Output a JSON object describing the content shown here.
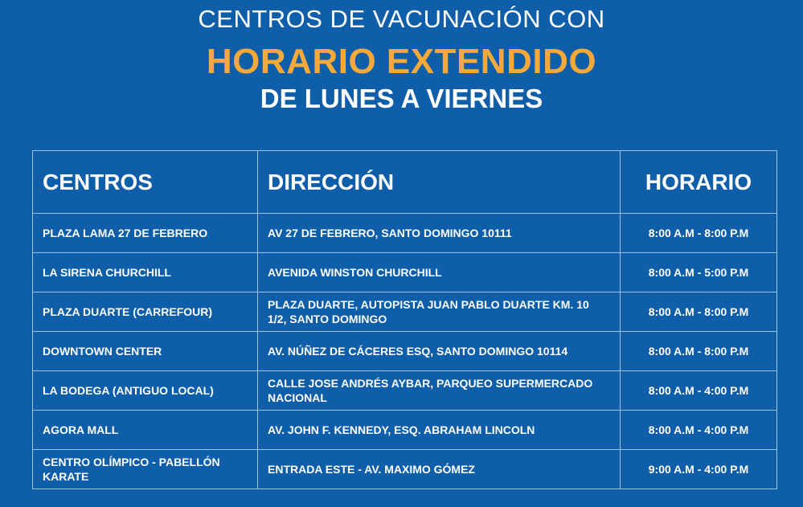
{
  "header": {
    "line1": "CENTROS DE VACUNACIÓN CON",
    "line2": "HORARIO EXTENDIDO",
    "line3": "DE LUNES A VIERNES"
  },
  "colors": {
    "background": "#0e5ea9",
    "accent": "#f5a93a",
    "border": "#9cc3e8"
  },
  "table": {
    "columns": [
      "CENTROS",
      "DIRECCIÓN",
      "HORARIO"
    ],
    "rows": [
      [
        "PLAZA LAMA 27 DE FEBRERO",
        "AV 27 DE FEBRERO, SANTO DOMINGO 10111",
        "8:00 A.M - 8:00 P.M"
      ],
      [
        "LA SIRENA CHURCHILL",
        "AVENIDA WINSTON CHURCHILL",
        "8:00 A.M - 5:00 P.M"
      ],
      [
        "PLAZA DUARTE (CARREFOUR)",
        "PLAZA DUARTE, AUTOPISTA JUAN PABLO DUARTE KM. 10 1/2, SANTO DOMINGO",
        "8:00 A.M - 8:00 P.M"
      ],
      [
        "DOWNTOWN CENTER",
        "AV. NÚÑEZ DE CÁCERES ESQ, SANTO DOMINGO 10114",
        "8:00 A.M - 8:00 P.M"
      ],
      [
        "LA BODEGA (ANTIGUO LOCAL)",
        "CALLE JOSE ANDRÉS AYBAR, PARQUEO SUPERMERCADO NACIONAL",
        "8:00 A.M - 4:00 P.M"
      ],
      [
        "AGORA MALL",
        "AV. JOHN F. KENNEDY, ESQ. ABRAHAM LINCOLN",
        "8:00 A.M - 4:00 P.M"
      ],
      [
        "CENTRO OLÍMPICO - PABELLÓN KARATE",
        "ENTRADA ESTE - AV. MAXIMO GÓMEZ",
        "9:00 A.M - 4:00 P.M"
      ]
    ]
  }
}
